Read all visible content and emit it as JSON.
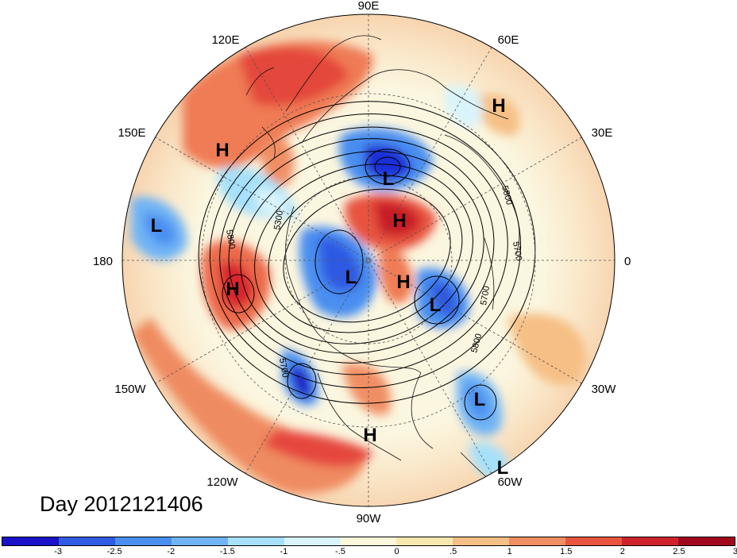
{
  "map": {
    "projection": "north-polar-stereographic",
    "field_shading": "anomaly",
    "contour_field": "geopotential height",
    "longitude_labels": [
      "90E",
      "60E",
      "30E",
      "0",
      "30W",
      "60W",
      "90W",
      "120W",
      "150W",
      "180",
      "150E",
      "120E"
    ],
    "contour_labels": [
      "5300",
      "5800",
      "5800",
      "5700",
      "5700",
      "5800",
      "5700"
    ],
    "pressure_centers": [
      {
        "type": "H",
        "location": "Central Asia / Kazakhstan"
      },
      {
        "type": "H",
        "location": "East Asia / Japan"
      },
      {
        "type": "L",
        "location": "East Siberia"
      },
      {
        "type": "H",
        "location": "Arctic Ocean"
      },
      {
        "type": "L",
        "location": "West Pacific"
      },
      {
        "type": "L",
        "location": "Canadian Arctic"
      },
      {
        "type": "H",
        "location": "Greenland"
      },
      {
        "type": "H",
        "location": "North Pacific"
      },
      {
        "type": "L",
        "location": "Norwegian Sea"
      },
      {
        "type": "L",
        "location": "Mid Atlantic"
      },
      {
        "type": "H",
        "location": "Mexico"
      },
      {
        "type": "L",
        "location": "Tropical Atlantic"
      }
    ]
  },
  "date_label": "Day 2012121406",
  "colorbar": {
    "colors": [
      "#1a10c8",
      "#2f5ae3",
      "#4a8ef0",
      "#6fb4f5",
      "#a6e0fa",
      "#d9f4fb",
      "#fbf8dc",
      "#f9e7b0",
      "#f6bf85",
      "#f08e63",
      "#e9543f",
      "#d0222d",
      "#a10a1e"
    ],
    "ticks": [
      "-3",
      "-2.5",
      "-2",
      "-1.5",
      "-1",
      "-.5",
      "0",
      ".5",
      "1",
      "1.5",
      "2",
      "2.5",
      "3"
    ]
  }
}
